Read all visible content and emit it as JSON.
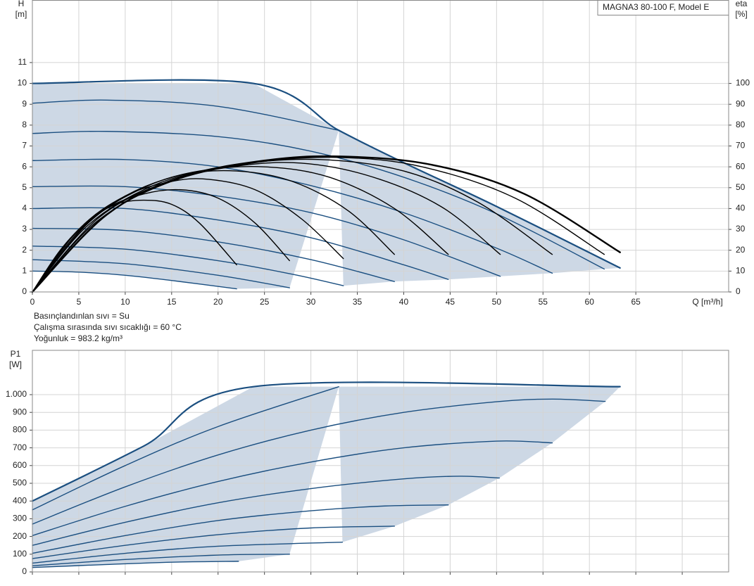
{
  "chart_data": [
    {
      "type": "line",
      "title": "MAGNA3 80-100 F, Model E",
      "ylabel": "H",
      "yunit": "[m]",
      "y2label": "eta",
      "y2unit": "[%]",
      "xlabel": "Q [m³/h]",
      "annotations": [
        "Basınçlandınlan sıvı = Su",
        "Çalışma sırasında sıvı sıcaklığı = 60 °C",
        "Yoğunluk = 983.2 kg/m³"
      ],
      "xlim": [
        0,
        75
      ],
      "xticks": [
        0,
        5,
        10,
        15,
        20,
        25,
        30,
        35,
        40,
        45,
        50,
        55,
        60,
        65
      ],
      "ylim": [
        0,
        14
      ],
      "yticks": [
        0,
        1,
        2,
        3,
        4,
        5,
        6,
        7,
        8,
        9,
        10,
        11
      ],
      "y2lim": [
        0,
        140
      ],
      "y2ticks": [
        0,
        10,
        20,
        30,
        40,
        50,
        60,
        70,
        80,
        90,
        100
      ],
      "grid": true,
      "fill_color": "#cdd8e5",
      "series": [
        {
          "color": "#1b4f80",
          "linewidth": 2.2,
          "x": [
            0,
            23.8,
            33,
            40,
            50,
            63.3
          ],
          "values": [
            10,
            10,
            7.75,
            6.2,
            4.1,
            1.15
          ]
        },
        {
          "color": "#1b4f80",
          "linewidth": 1.4,
          "x": [
            0,
            5,
            10,
            15,
            22
          ],
          "values": [
            1.0,
            0.95,
            0.8,
            0.55,
            0.15
          ]
        },
        {
          "color": "#1b4f80",
          "linewidth": 1.4,
          "x": [
            0,
            10,
            20,
            27.7
          ],
          "values": [
            1.55,
            1.35,
            0.8,
            0.2
          ]
        },
        {
          "color": "#1b4f80",
          "linewidth": 1.4,
          "x": [
            0,
            10,
            20,
            28,
            33.5
          ],
          "values": [
            2.2,
            2.05,
            1.5,
            0.85,
            0.3
          ]
        },
        {
          "color": "#1b4f80",
          "linewidth": 1.4,
          "x": [
            0,
            10,
            20,
            30,
            39
          ],
          "values": [
            3.05,
            2.95,
            2.4,
            1.55,
            0.5
          ]
        },
        {
          "color": "#1b4f80",
          "linewidth": 1.4,
          "x": [
            0,
            10,
            20,
            30,
            40,
            44.8
          ],
          "values": [
            4.0,
            4.0,
            3.45,
            2.6,
            1.3,
            0.6
          ]
        },
        {
          "color": "#1b4f80",
          "linewidth": 1.4,
          "x": [
            0,
            10,
            20,
            30,
            40,
            50.4
          ],
          "values": [
            5.05,
            5.05,
            4.6,
            3.8,
            2.5,
            0.75
          ]
        },
        {
          "color": "#1b4f80",
          "linewidth": 1.4,
          "x": [
            0,
            10,
            20,
            30,
            40,
            50,
            56
          ],
          "values": [
            6.3,
            6.35,
            6.0,
            5.1,
            3.8,
            2.1,
            0.9
          ]
        },
        {
          "color": "#1b4f80",
          "linewidth": 1.4,
          "x": [
            0,
            8,
            20,
            30,
            40,
            50,
            61.6
          ],
          "values": [
            7.6,
            7.7,
            7.45,
            6.75,
            5.5,
            3.75,
            1.1
          ]
        },
        {
          "color": "#1b4f80",
          "linewidth": 1.4,
          "x": [
            0,
            8,
            20,
            33
          ],
          "values": [
            9.05,
            9.2,
            8.9,
            7.75
          ]
        },
        {
          "color": "#000000",
          "linewidth": 1.4,
          "axis": "y2",
          "x": [
            0,
            3,
            6,
            9,
            12,
            15,
            18,
            22
          ],
          "values": [
            0,
            20,
            34,
            42,
            44,
            42,
            33,
            13
          ]
        },
        {
          "color": "#000000",
          "linewidth": 1.4,
          "axis": "y2",
          "x": [
            0,
            4,
            8,
            12,
            16,
            20,
            24,
            27.7
          ],
          "values": [
            0,
            25,
            40,
            47,
            49,
            45,
            33,
            15
          ]
        },
        {
          "color": "#000000",
          "linewidth": 1.4,
          "axis": "y2",
          "x": [
            0,
            5,
            10,
            15,
            19,
            24,
            29,
            33.5
          ],
          "values": [
            0,
            30,
            46,
            53,
            54,
            49,
            35,
            16
          ]
        },
        {
          "color": "#000000",
          "linewidth": 1.4,
          "axis": "y2",
          "x": [
            0,
            5,
            10,
            16,
            22,
            28,
            34,
            39
          ],
          "values": [
            0,
            29,
            46,
            56,
            58,
            53,
            39,
            18
          ]
        },
        {
          "color": "#000000",
          "linewidth": 1.4,
          "axis": "y2",
          "x": [
            0,
            6,
            12,
            18,
            25,
            32,
            39,
            44.8
          ],
          "values": [
            0,
            33,
            50,
            58,
            60,
            55,
            40,
            18
          ]
        },
        {
          "color": "#000000",
          "linewidth": 1.4,
          "axis": "y2",
          "x": [
            0,
            6,
            13,
            20,
            28,
            36,
            44,
            50.4
          ],
          "values": [
            0,
            32,
            51,
            59,
            62,
            56,
            41,
            18
          ]
        },
        {
          "color": "#000000",
          "linewidth": 1.4,
          "axis": "y2",
          "x": [
            0,
            7,
            14,
            22,
            31,
            40,
            48,
            56
          ],
          "values": [
            0,
            35,
            52,
            61,
            63.5,
            58,
            43,
            18
          ]
        },
        {
          "color": "#000000",
          "linewidth": 1.4,
          "axis": "y2",
          "x": [
            0,
            7,
            15,
            24,
            33,
            42,
            52,
            61.6
          ],
          "values": [
            0,
            34,
            53,
            62,
            64.5,
            60,
            45,
            18
          ]
        },
        {
          "color": "#000000",
          "linewidth": 2.4,
          "axis": "y2",
          "x": [
            0,
            8,
            16,
            25,
            33,
            43,
            53,
            63.3
          ],
          "values": [
            0,
            37,
            55,
            63,
            65,
            61,
            47,
            19
          ]
        }
      ]
    },
    {
      "type": "line",
      "ylabel": "P1",
      "yunit": "[W]",
      "xlim": [
        0,
        75
      ],
      "xticks": [
        0,
        5,
        10,
        15,
        20,
        25,
        30,
        35,
        40,
        45,
        50,
        55,
        60,
        65,
        70
      ],
      "xtick_labels": false,
      "ylim": [
        0,
        1250
      ],
      "yticks": [
        0,
        100,
        200,
        300,
        400,
        500,
        600,
        700,
        800,
        900,
        {
          "value": 1000,
          "label": "1.000"
        }
      ],
      "grid": true,
      "fill_color": "#cdd8e5",
      "series": [
        {
          "color": "#1b4f80",
          "linewidth": 2.2,
          "x": [
            0,
            12,
            23.8,
            63.3
          ],
          "values": [
            400,
            710,
            1045,
            1045
          ]
        },
        {
          "color": "#1b4f80",
          "linewidth": 1.4,
          "x": [
            0,
            8,
            15,
            22.2
          ],
          "values": [
            25,
            42,
            55,
            60
          ]
        },
        {
          "color": "#1b4f80",
          "linewidth": 1.4,
          "x": [
            0,
            10,
            20,
            27.7
          ],
          "values": [
            35,
            70,
            95,
            100
          ]
        },
        {
          "color": "#1b4f80",
          "linewidth": 1.4,
          "x": [
            0,
            10,
            20,
            33.4
          ],
          "values": [
            50,
            105,
            145,
            168
          ]
        },
        {
          "color": "#1b4f80",
          "linewidth": 1.4,
          "x": [
            0,
            10,
            20,
            30,
            39
          ],
          "values": [
            75,
            150,
            210,
            248,
            258
          ]
        },
        {
          "color": "#1b4f80",
          "linewidth": 1.4,
          "x": [
            0,
            10,
            20,
            30,
            38,
            44.8
          ],
          "values": [
            105,
            205,
            290,
            345,
            372,
            378
          ]
        },
        {
          "color": "#1b4f80",
          "linewidth": 1.4,
          "x": [
            0,
            10,
            20,
            30,
            40,
            46,
            50.3
          ],
          "values": [
            150,
            280,
            390,
            470,
            525,
            540,
            530
          ]
        },
        {
          "color": "#1b4f80",
          "linewidth": 1.4,
          "x": [
            0,
            10,
            20,
            30,
            40,
            50,
            56
          ],
          "values": [
            205,
            370,
            510,
            620,
            700,
            738,
            728
          ]
        },
        {
          "color": "#1b4f80",
          "linewidth": 1.4,
          "x": [
            0,
            10,
            20,
            30,
            40,
            50,
            56,
            61.7
          ],
          "values": [
            270,
            480,
            660,
            800,
            900,
            960,
            975,
            962
          ]
        },
        {
          "color": "#1b4f80",
          "linewidth": 1.4,
          "x": [
            0,
            10,
            20,
            33
          ],
          "values": [
            350,
            600,
            820,
            1045
          ]
        }
      ]
    }
  ]
}
